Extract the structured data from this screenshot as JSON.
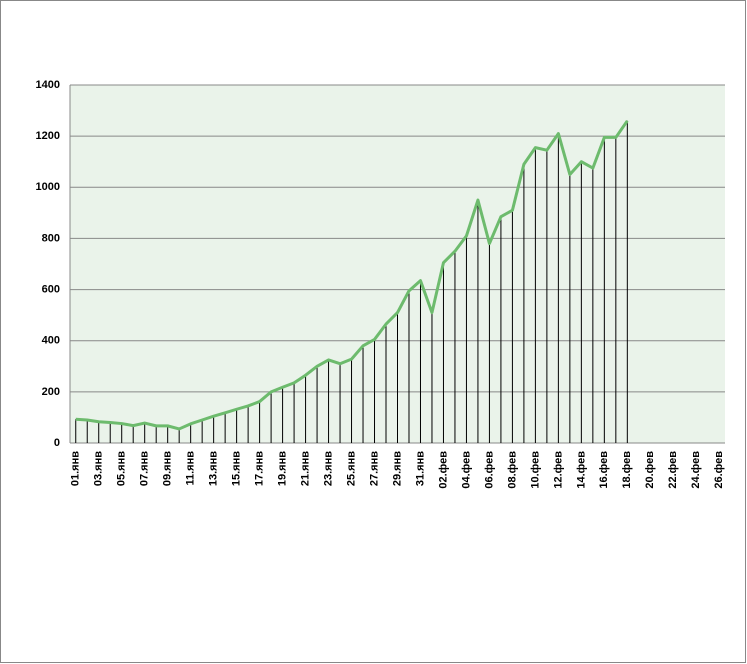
{
  "chart_data": {
    "type": "line",
    "categories": [
      "01.янв",
      null,
      "03.янв",
      null,
      "05.янв",
      null,
      "07.янв",
      null,
      "09.янв",
      null,
      "11.янв",
      null,
      "13.янв",
      null,
      "15.янв",
      null,
      "17.янв",
      null,
      "19.янв",
      null,
      "21.янв",
      null,
      "23.янв",
      null,
      "25.янв",
      null,
      "27.янв",
      null,
      "29.янв",
      null,
      "31.янв",
      null,
      "02.фев",
      null,
      "04.фев",
      null,
      "06.фев",
      null,
      "08.фев",
      null,
      "10.фев",
      null,
      "12.фев",
      null,
      "14.фев",
      null,
      "16.фев",
      null,
      "18.фев",
      null,
      "20.фев",
      null,
      "22.фев",
      null,
      "24.фев",
      null,
      "26.фев"
    ],
    "values": [
      93,
      90,
      83,
      80,
      76,
      68,
      78,
      67,
      67,
      55,
      75,
      90,
      105,
      118,
      132,
      145,
      162,
      200,
      218,
      235,
      265,
      300,
      325,
      310,
      328,
      380,
      405,
      465,
      510,
      595,
      635,
      510,
      705,
      750,
      810,
      950,
      780,
      885,
      910,
      1090,
      1155,
      1145,
      1210,
      1050,
      1100,
      1075,
      1195,
      1195,
      1260,
      null,
      null,
      null,
      null,
      null,
      null,
      null,
      null
    ],
    "color": "#6dbb6d",
    "ylim": [
      0,
      1400
    ],
    "yticks": [
      0,
      200,
      400,
      600,
      800,
      1000,
      1200,
      1400
    ],
    "grid": true
  }
}
